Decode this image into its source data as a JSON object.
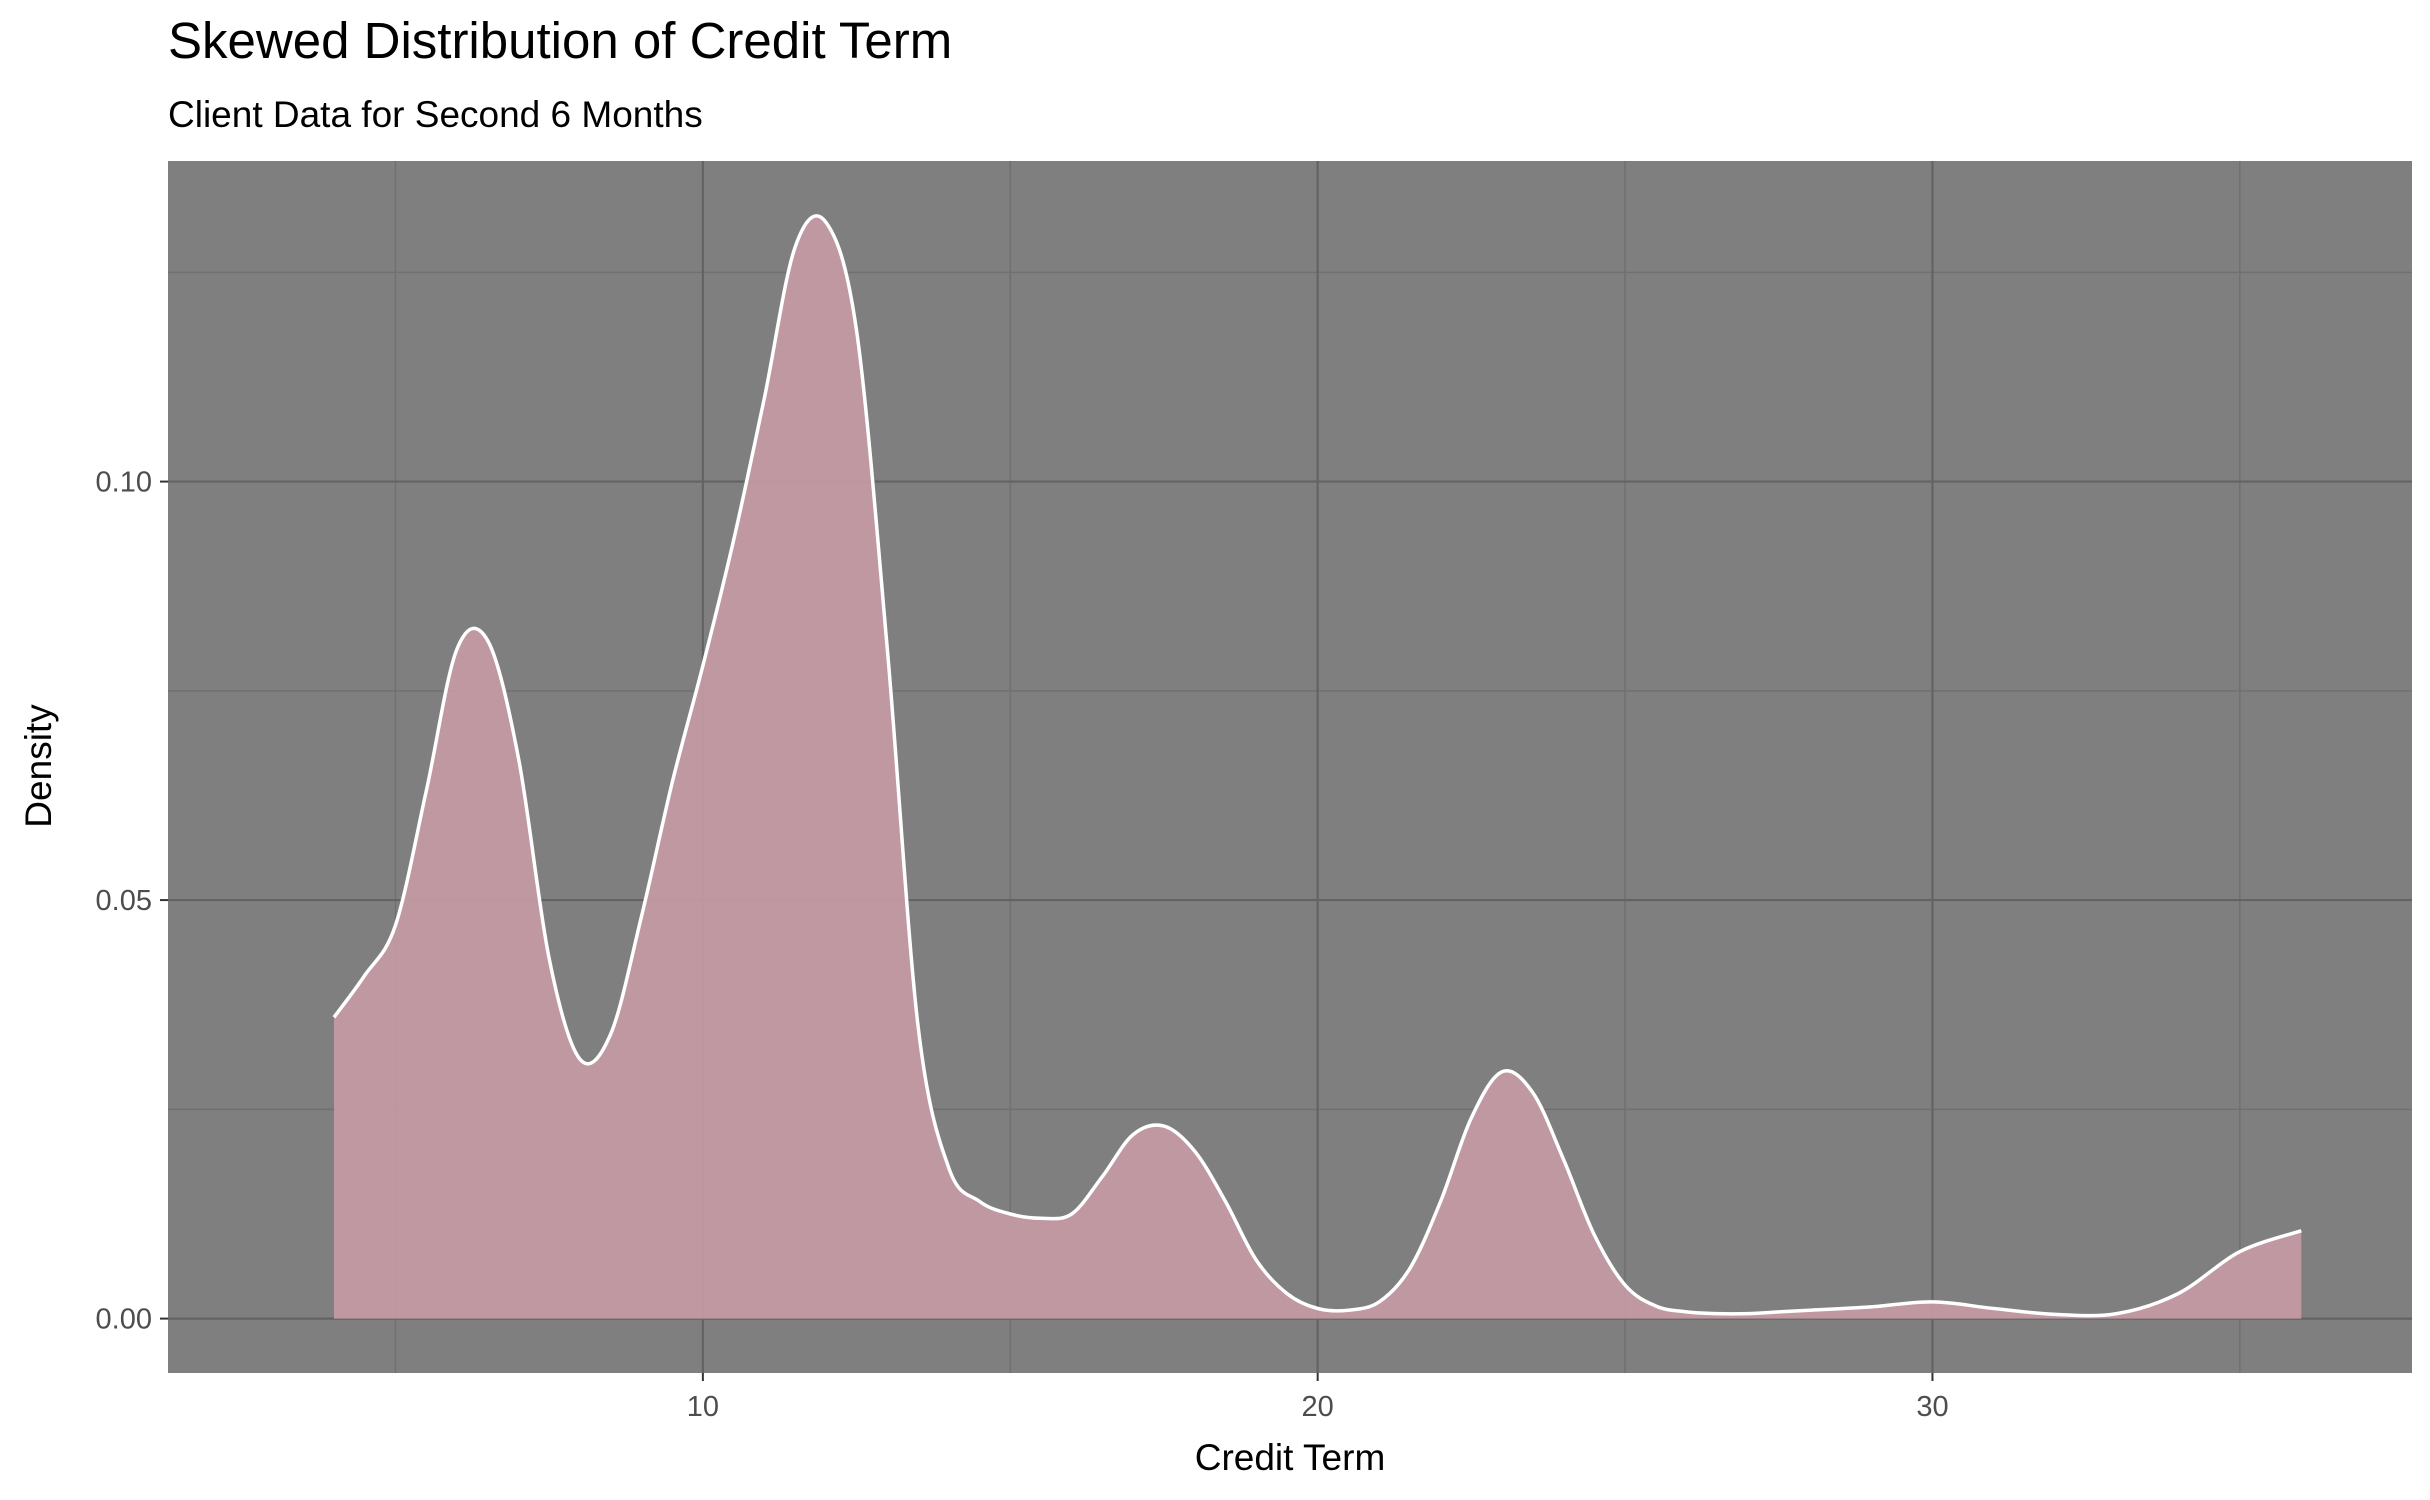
{
  "chart_data": {
    "type": "area",
    "title": "Skewed Distribution of Credit Term",
    "subtitle": "Client Data for Second 6 Months",
    "xlabel": "Credit Term",
    "ylabel": "Density",
    "xlim": [
      1.3,
      37.8
    ],
    "ylim": [
      -0.0065,
      0.1383
    ],
    "x_ticks": [
      10,
      20,
      30
    ],
    "x_tick_labels": [
      "10",
      "20",
      "30"
    ],
    "y_ticks": [
      0.0,
      0.05,
      0.1
    ],
    "y_tick_labels": [
      "0.00",
      "0.05",
      "0.10"
    ],
    "grid": true,
    "legend": "none",
    "panel_color": "#7f7f7f",
    "fill_color": "#c49aa4",
    "line_color": "#ffffff",
    "series": [
      {
        "x": [
          4,
          4.5,
          5,
          5.5,
          6,
          6.5,
          7,
          7.5,
          8,
          8.5,
          9,
          9.5,
          10,
          10.5,
          11,
          11.5,
          12,
          12.5,
          13,
          13.5,
          14,
          14.5,
          15,
          15.5,
          16,
          16.5,
          17,
          17.5,
          18,
          18.5,
          19,
          19.5,
          20,
          20.5,
          21,
          21.5,
          22,
          22.5,
          23,
          23.5,
          24,
          24.5,
          25,
          25.5,
          26,
          26.5,
          27,
          27.5,
          28,
          29,
          30,
          31,
          32,
          33,
          34,
          35,
          36
        ],
        "y": [
          0.036,
          0.041,
          0.047,
          0.063,
          0.08,
          0.081,
          0.067,
          0.043,
          0.031,
          0.034,
          0.048,
          0.064,
          0.078,
          0.093,
          0.11,
          0.128,
          0.131,
          0.118,
          0.08,
          0.035,
          0.018,
          0.014,
          0.0125,
          0.012,
          0.0125,
          0.017,
          0.022,
          0.023,
          0.02,
          0.014,
          0.007,
          0.003,
          0.0012,
          0.001,
          0.002,
          0.006,
          0.014,
          0.024,
          0.0295,
          0.027,
          0.019,
          0.01,
          0.004,
          0.0015,
          0.0008,
          0.0006,
          0.0006,
          0.0008,
          0.001,
          0.0014,
          0.002,
          0.0012,
          0.0005,
          0.0006,
          0.003,
          0.008,
          0.0105
        ]
      }
    ]
  }
}
